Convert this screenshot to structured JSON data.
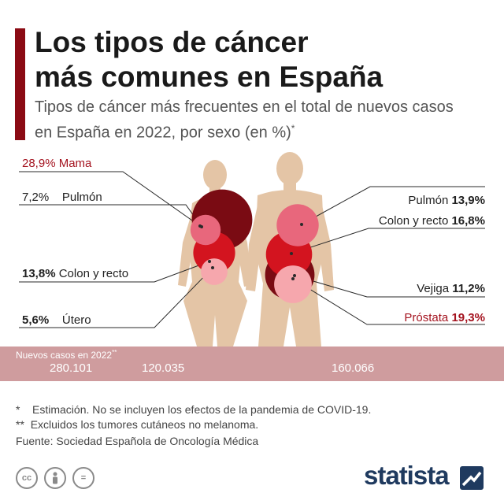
{
  "header": {
    "title_line1": "Los tipos de cáncer",
    "title_line2": "más comunes en España",
    "subtitle": "Tipos de cáncer más frecuentes en el total de nuevos casos en España en 2022, por sexo (en %)",
    "subtitle_mark": "*"
  },
  "chart_data": {
    "type": "bubble",
    "title": "Los tipos de cáncer más comunes en España",
    "series": [
      {
        "points": [
          {
            "label": "Mama",
            "value": 28.9,
            "display": "28,9%",
            "color": "#7a0b13"
          },
          {
            "label": "Pulmón",
            "value": 7.2,
            "display": "7,2%",
            "color": "#e8677c"
          },
          {
            "label": "Colon y recto",
            "value": 13.8,
            "display": "13,8%",
            "color": "#d3141f"
          },
          {
            "label": "Útero",
            "value": 5.6,
            "display": "5,6%",
            "color": "#f6a7ad"
          }
        ]
      },
      {
        "points": [
          {
            "label": "Pulmón",
            "value": 13.9,
            "display": "13,9%",
            "color": "#e8677c"
          },
          {
            "label": "Colon y recto",
            "value": 16.8,
            "display": "16,8%",
            "color": "#d3141f"
          },
          {
            "label": "Vejiga",
            "value": 11.2,
            "display": "11,2%",
            "color": "#f6a7ad"
          },
          {
            "label": "Próstata",
            "value": 19.3,
            "display": "19,3%",
            "color": "#7a0b13"
          }
        ]
      }
    ]
  },
  "new_cases": {
    "title": "Nuevos casos en 2022",
    "title_mark": "**",
    "total": "280.101",
    "women": "120.035",
    "men": "160.066"
  },
  "notes": {
    "note1_mark": "*",
    "note1": "Estimación. No se incluyen los efectos de la pandemia de COVID-19.",
    "note2_mark": "**",
    "note2": "Excluidos los tumores cutáneos no melanoma.",
    "source": "Fuente: Sociedad Española de Oncología Médica"
  },
  "license_icons": [
    "cc-icon",
    "by-person-icon",
    "nd-equals-icon"
  ],
  "license_glyphs": {
    "cc": "cc",
    "nd": "="
  },
  "brand": {
    "name": "statista"
  },
  "colors": {
    "accent": "#8b0b14",
    "highlight_text": "#a4131f",
    "body": "#e4c5a6",
    "strip": "#cf9c9e",
    "brand": "#1f3a5f"
  }
}
